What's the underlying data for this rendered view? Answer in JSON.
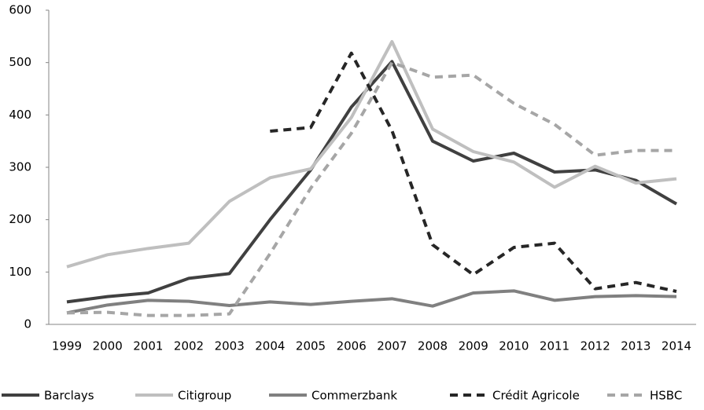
{
  "chart_data": {
    "type": "line",
    "categories": [
      "1999",
      "2000",
      "2001",
      "2002",
      "2003",
      "2004",
      "2005",
      "2006",
      "2007",
      "2008",
      "2009",
      "2010",
      "2011",
      "2012",
      "2013",
      "2014"
    ],
    "series": [
      {
        "name": "Barclays",
        "color": "#404040",
        "dashed": false,
        "values": [
          43,
          53,
          60,
          88,
          97,
          200,
          295,
          415,
          502,
          350,
          312,
          327,
          291,
          295,
          275,
          230
        ]
      },
      {
        "name": "Citigroup",
        "color": "#bfbfbf",
        "dashed": false,
        "values": [
          110,
          133,
          145,
          155,
          235,
          280,
          297,
          395,
          540,
          373,
          330,
          310,
          262,
          302,
          270,
          278
        ]
      },
      {
        "name": "Commerzbank",
        "color": "#808080",
        "dashed": false,
        "values": [
          22,
          37,
          46,
          44,
          36,
          43,
          38,
          44,
          49,
          35,
          60,
          64,
          46,
          53,
          55,
          53
        ]
      },
      {
        "name": "Crédit Agricole",
        "color": "#262626",
        "dashed": true,
        "values": [
          null,
          null,
          null,
          null,
          null,
          369,
          376,
          518,
          370,
          152,
          95,
          147,
          155,
          68,
          80,
          63
        ]
      },
      {
        "name": "HSBC",
        "color": "#a6a6a6",
        "dashed": true,
        "values": [
          22,
          23,
          17,
          17,
          20,
          135,
          260,
          365,
          500,
          472,
          476,
          422,
          382,
          323,
          332,
          332
        ]
      }
    ],
    "ylim": [
      0,
      600
    ],
    "yticks": [
      0,
      100,
      200,
      300,
      400,
      500,
      600
    ],
    "grid": false,
    "legend": "bottom"
  }
}
